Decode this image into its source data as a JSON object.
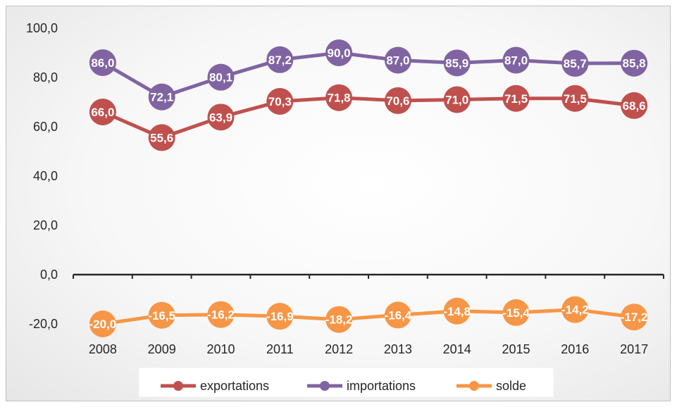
{
  "chart_data": {
    "type": "line",
    "title": "",
    "xlabel": "",
    "ylabel": "",
    "categories": [
      "2008",
      "2009",
      "2010",
      "2011",
      "2012",
      "2013",
      "2014",
      "2015",
      "2016",
      "2017"
    ],
    "ylim": [
      -20,
      100
    ],
    "yticks": [
      -20,
      0,
      20,
      40,
      60,
      80,
      100
    ],
    "ytick_labels": [
      "-20,0",
      "0,0",
      "20,0",
      "40,0",
      "60,0",
      "80,0",
      "100,0"
    ],
    "grid": false,
    "legend_position": "bottom",
    "series": [
      {
        "name": "exportations",
        "color": "#c0504d",
        "values": [
          66.0,
          55.6,
          63.9,
          70.3,
          71.8,
          70.6,
          71.0,
          71.5,
          71.5,
          68.6
        ],
        "labels": [
          "66,0",
          "55,6",
          "63,9",
          "70,3",
          "71,8",
          "70,6",
          "71,0",
          "71,5",
          "71,5",
          "68,6"
        ]
      },
      {
        "name": "importations",
        "color": "#8064a2",
        "values": [
          86.0,
          72.1,
          80.1,
          87.2,
          90.0,
          87.0,
          85.9,
          87.0,
          85.7,
          85.8
        ],
        "labels": [
          "86,0",
          "72,1",
          "80,1",
          "87,2",
          "90,0",
          "87,0",
          "85,9",
          "87,0",
          "85,7",
          "85,8"
        ]
      },
      {
        "name": "solde",
        "color": "#f79646",
        "values": [
          -20.0,
          -16.5,
          -16.2,
          -16.9,
          -18.2,
          -16.4,
          -14.8,
          -15.4,
          -14.2,
          -17.2
        ],
        "labels": [
          "-20,0",
          "-16,5",
          "-16,2",
          "-16,9",
          "-18,2",
          "-16,4",
          "-14,8",
          "-15,4",
          "-14,2",
          "-17,2"
        ]
      }
    ]
  }
}
